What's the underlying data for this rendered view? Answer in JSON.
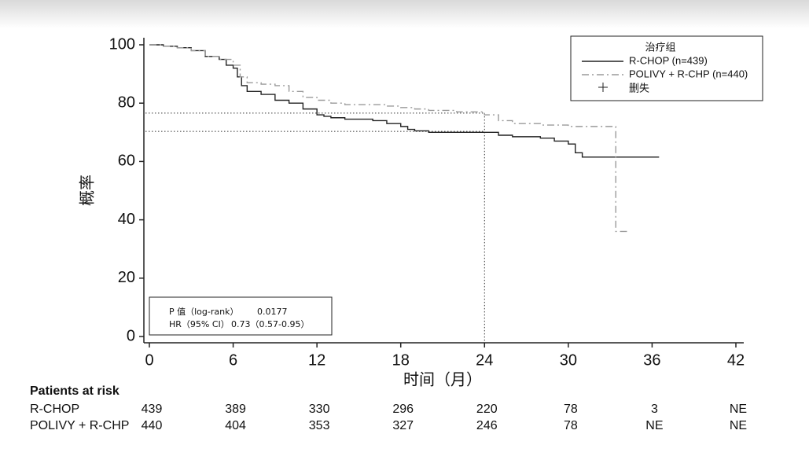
{
  "chart_data": {
    "type": "line",
    "step": "post",
    "xlabel": "时间（月）",
    "ylabel": "概率",
    "xlim": [
      0,
      42
    ],
    "ylim": [
      0,
      100
    ],
    "xticks": [
      0,
      6,
      12,
      18,
      24,
      30,
      36,
      42
    ],
    "yticks": [
      0,
      20,
      40,
      60,
      80,
      100
    ],
    "legend_title": "治疗组",
    "censor_label": "删失",
    "reference_x": 24,
    "reference_y": [
      76.6,
      70.3
    ],
    "series": [
      {
        "name": "R-CHOP (n=439)",
        "color": "#222222",
        "dash": "solid",
        "x": [
          0,
          1,
          2,
          3,
          4,
          5,
          5.5,
          6,
          6.3,
          6.6,
          7,
          8,
          9,
          10,
          11,
          12,
          12.5,
          13,
          14,
          15,
          16,
          17,
          18,
          18.5,
          19,
          20,
          22,
          24,
          25,
          26,
          28,
          29,
          30,
          30.5,
          31,
          32,
          34,
          36.5
        ],
        "values": [
          100,
          99.5,
          99,
          98,
          96,
          95,
          93,
          92,
          89,
          86,
          84,
          83,
          81,
          80,
          78,
          76,
          75.5,
          75,
          74.5,
          74.5,
          74,
          73,
          72,
          71,
          70.5,
          70,
          70,
          70,
          69,
          68.5,
          68,
          67,
          66,
          63,
          61.5,
          61.5,
          61.5,
          61.5
        ]
      },
      {
        "name": "POLIVY  + R-CHP (n=440)",
        "color": "#9a9a9a",
        "dash": "dashdot",
        "x": [
          0,
          1,
          2,
          3,
          4,
          5,
          6,
          6.5,
          7,
          8,
          9,
          10,
          11,
          12,
          13,
          14,
          16,
          17,
          18,
          19,
          20,
          22,
          24,
          25,
          26,
          28,
          30,
          31,
          33,
          33.4,
          34.2
        ],
        "values": [
          100,
          99.5,
          99,
          98,
          96,
          95,
          93,
          89,
          87,
          86.5,
          86,
          84,
          82,
          81,
          80,
          79.5,
          79.5,
          79,
          78.5,
          78,
          77.5,
          77,
          76,
          74,
          73,
          72.5,
          72,
          72,
          72,
          36,
          36
        ]
      }
    ],
    "stats": {
      "p_label": "P 值（log-rank）",
      "p_value": "0.0177",
      "hr_label": "HR（95% CI）",
      "hr_value": "0.73（0.57-0.95）"
    },
    "risk_table": {
      "title": "Patients at risk",
      "rows": [
        {
          "name": "R-CHOP",
          "counts": [
            439,
            389,
            330,
            296,
            220,
            78,
            3,
            "NE"
          ]
        },
        {
          "name": "POLIVY + R-CHP",
          "counts": [
            440,
            404,
            353,
            327,
            246,
            78,
            "NE",
            "NE"
          ]
        }
      ]
    }
  }
}
